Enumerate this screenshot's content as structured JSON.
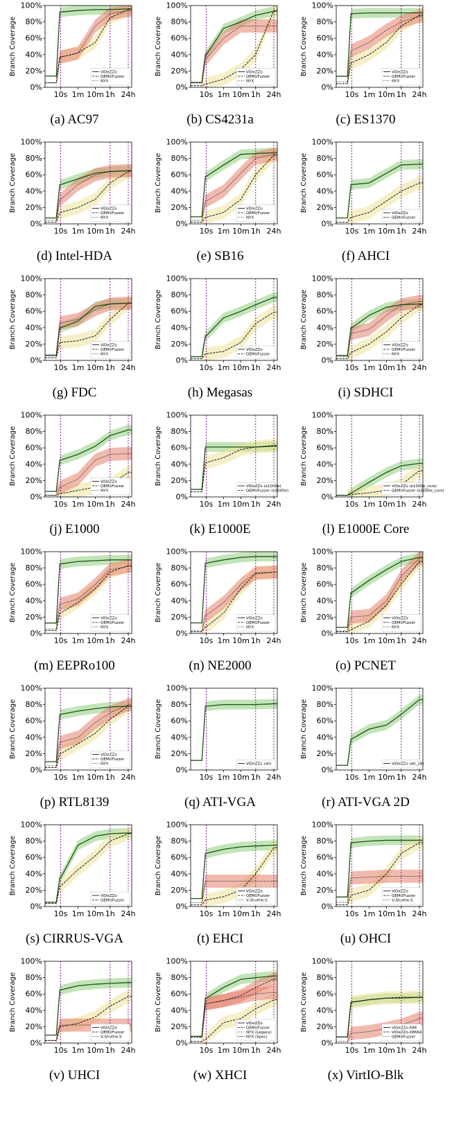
{
  "figure": {
    "ylabel": "Branch Coverage",
    "yticks": [
      "0%",
      "20%",
      "40%",
      "60%",
      "80%",
      "100%"
    ],
    "xticks": [
      "10s",
      "1m",
      "10m",
      "1h",
      "24h"
    ]
  },
  "colors": {
    "videzzo_band": "#8fcf7e",
    "qemufuzzer_band": "#eee39a",
    "nyx_band": "#e6826e",
    "marker_line": "#8b1a9b",
    "line": "#111111"
  },
  "chart_data": [
    {
      "type": "line",
      "caption": "(a) AC97",
      "legend": [
        "ViDeZZo",
        "QEMUFuzzer",
        "NYX"
      ],
      "x": [
        "10s",
        "1m",
        "10m",
        "1h",
        "24h"
      ],
      "ylim": [
        0,
        100
      ],
      "series": [
        {
          "name": "ViDeZZo",
          "values": [
            92,
            94,
            95,
            95,
            96
          ]
        },
        {
          "name": "QEMUFuzzer",
          "values": [
            37,
            42,
            55,
            85,
            95
          ]
        },
        {
          "name": "NYX",
          "values": [
            37,
            42,
            75,
            90,
            94
          ]
        }
      ]
    },
    {
      "type": "line",
      "caption": "(b) CS4231a",
      "legend": [
        "ViDeZZo",
        "QEMUFuzzer",
        "NYX"
      ],
      "x": [
        "10s",
        "1m",
        "10m",
        "1h",
        "24h"
      ],
      "ylim": [
        0,
        100
      ],
      "series": [
        {
          "name": "ViDeZZo",
          "values": [
            40,
            72,
            80,
            88,
            93
          ]
        },
        {
          "name": "QEMUFuzzer",
          "values": [
            4,
            10,
            22,
            40,
            94
          ]
        },
        {
          "name": "NYX",
          "values": [
            35,
            60,
            75,
            75,
            75
          ]
        }
      ]
    },
    {
      "type": "line",
      "caption": "(c) ES1370",
      "legend": [
        "ViDeZZo",
        "QEMUFuzzer",
        "NYX"
      ],
      "x": [
        "10s",
        "1m",
        "10m",
        "1h",
        "24h"
      ],
      "ylim": [
        0,
        100
      ],
      "series": [
        {
          "name": "ViDeZZo",
          "values": [
            90,
            91,
            91,
            91,
            91
          ]
        },
        {
          "name": "QEMUFuzzer",
          "values": [
            30,
            40,
            55,
            75,
            88
          ]
        },
        {
          "name": "NYX",
          "values": [
            45,
            55,
            70,
            80,
            87
          ]
        }
      ]
    },
    {
      "type": "line",
      "caption": "(d) Intel-HDA",
      "legend": [
        "ViDeZZo",
        "QEMUFuzzer",
        "NYX"
      ],
      "x": [
        "10s",
        "1m",
        "10m",
        "1h",
        "24h"
      ],
      "ylim": [
        0,
        100
      ],
      "series": [
        {
          "name": "ViDeZZo",
          "values": [
            48,
            55,
            62,
            64,
            65
          ]
        },
        {
          "name": "QEMUFuzzer",
          "values": [
            14,
            20,
            30,
            50,
            64
          ]
        },
        {
          "name": "NYX",
          "values": [
            30,
            48,
            60,
            64,
            65
          ]
        }
      ]
    },
    {
      "type": "line",
      "caption": "(e) SB16",
      "legend": [
        "ViDeZZo",
        "QEMUFuzzer",
        "NYX"
      ],
      "x": [
        "10s",
        "1m",
        "10m",
        "1h",
        "24h"
      ],
      "ylim": [
        0,
        100
      ],
      "series": [
        {
          "name": "ViDeZZo",
          "values": [
            58,
            72,
            85,
            86,
            87
          ]
        },
        {
          "name": "QEMUFuzzer",
          "values": [
            8,
            14,
            30,
            60,
            84
          ]
        },
        {
          "name": "NYX",
          "values": [
            28,
            40,
            62,
            80,
            85
          ]
        }
      ]
    },
    {
      "type": "line",
      "caption": "(f) AHCI",
      "legend": [
        "ViDeZZo",
        "QEMUFuzzer"
      ],
      "x": [
        "10s",
        "1m",
        "10m",
        "1h",
        "24h"
      ],
      "ylim": [
        0,
        100
      ],
      "series": [
        {
          "name": "ViDeZZo",
          "values": [
            48,
            50,
            62,
            72,
            73
          ]
        },
        {
          "name": "QEMUFuzzer",
          "values": [
            8,
            14,
            28,
            40,
            50
          ]
        }
      ]
    },
    {
      "type": "line",
      "caption": "(g) FDC",
      "legend": [
        "ViDeZZo",
        "QEMUFuzzer",
        "NYX"
      ],
      "x": [
        "10s",
        "1m",
        "10m",
        "1h",
        "24h"
      ],
      "ylim": [
        0,
        100
      ],
      "series": [
        {
          "name": "ViDeZZo",
          "values": [
            40,
            48,
            66,
            69,
            70
          ]
        },
        {
          "name": "QEMUFuzzer",
          "values": [
            22,
            24,
            30,
            50,
            70
          ]
        },
        {
          "name": "NYX",
          "values": [
            46,
            50,
            62,
            69,
            70
          ]
        }
      ]
    },
    {
      "type": "line",
      "caption": "(h) Megasas",
      "legend": [
        "ViDeZZo",
        "QEMUFuzzer"
      ],
      "x": [
        "10s",
        "1m",
        "10m",
        "1h",
        "24h"
      ],
      "ylim": [
        0,
        100
      ],
      "series": [
        {
          "name": "ViDeZZo",
          "values": [
            30,
            52,
            60,
            68,
            77
          ]
        },
        {
          "name": "QEMUFuzzer",
          "values": [
            8,
            11,
            22,
            45,
            59
          ]
        }
      ]
    },
    {
      "type": "line",
      "caption": "(i) SDHCI",
      "legend": [
        "ViDeZZo",
        "QEMUFuzzer",
        "NYX"
      ],
      "x": [
        "10s",
        "1m",
        "10m",
        "1h",
        "24h"
      ],
      "ylim": [
        0,
        100
      ],
      "series": [
        {
          "name": "ViDeZZo",
          "values": [
            40,
            55,
            65,
            68,
            69
          ]
        },
        {
          "name": "QEMUFuzzer",
          "values": [
            10,
            20,
            35,
            52,
            68
          ]
        },
        {
          "name": "NYX",
          "values": [
            33,
            38,
            55,
            68,
            72
          ]
        }
      ]
    },
    {
      "type": "line",
      "caption": "(j) E1000",
      "legend": [
        "ViDeZZo",
        "QEMUFuzzer",
        "NYX"
      ],
      "x": [
        "10s",
        "1m",
        "10m",
        "1h",
        "24h"
      ],
      "ylim": [
        0,
        100
      ],
      "series": [
        {
          "name": "ViDeZZo",
          "values": [
            45,
            52,
            62,
            75,
            82
          ]
        },
        {
          "name": "QEMUFuzzer",
          "values": [
            4,
            8,
            12,
            15,
            30
          ]
        },
        {
          "name": "NYX",
          "values": [
            12,
            22,
            45,
            52,
            53
          ]
        }
      ]
    },
    {
      "type": "line",
      "caption": "(k) E1000E",
      "legend": [
        "ViDeZZo (e1000e)",
        "QEMUFuzzer (e1000e)"
      ],
      "x": [
        "10s",
        "1m",
        "10m",
        "1h",
        "24h"
      ],
      "ylim": [
        0,
        100
      ],
      "series": [
        {
          "name": "ViDeZZo (e1000e)",
          "values": [
            61,
            61,
            61,
            61,
            62
          ]
        },
        {
          "name": "QEMUFuzzer (e1000e)",
          "values": [
            42,
            48,
            58,
            61,
            63
          ]
        }
      ]
    },
    {
      "type": "line",
      "caption": "(l) E1000E Core",
      "legend": [
        "ViDeZZo (e1000e_core)",
        "QEMUFuzzer (e1000e_core)"
      ],
      "x": [
        "10s",
        "1m",
        "10m",
        "1h",
        "24h"
      ],
      "ylim": [
        0,
        100
      ],
      "series": [
        {
          "name": "ViDeZZo (e1000e_core)",
          "values": [
            5,
            18,
            30,
            38,
            41
          ]
        },
        {
          "name": "QEMUFuzzer (e1000e_core)",
          "values": [
            3,
            5,
            8,
            15,
            32
          ]
        }
      ]
    },
    {
      "type": "line",
      "caption": "(m) EEPRo100",
      "legend": [
        "ViDeZZo",
        "QEMUFuzzer",
        "NYX"
      ],
      "x": [
        "10s",
        "1m",
        "10m",
        "1h",
        "24h"
      ],
      "ylim": [
        0,
        100
      ],
      "series": [
        {
          "name": "ViDeZZo",
          "values": [
            85,
            88,
            89,
            90,
            90
          ]
        },
        {
          "name": "QEMUFuzzer",
          "values": [
            25,
            38,
            55,
            75,
            83
          ]
        },
        {
          "name": "NYX",
          "values": [
            36,
            42,
            60,
            78,
            82
          ]
        }
      ]
    },
    {
      "type": "line",
      "caption": "(n) NE2000",
      "legend": [
        "ViDeZZo",
        "QEMUFuzzer",
        "NYX"
      ],
      "x": [
        "10s",
        "1m",
        "10m",
        "1h",
        "24h"
      ],
      "ylim": [
        0,
        100
      ],
      "series": [
        {
          "name": "ViDeZZo",
          "values": [
            86,
            90,
            93,
            94,
            94
          ]
        },
        {
          "name": "QEMUFuzzer",
          "values": [
            8,
            25,
            55,
            73,
            75
          ]
        },
        {
          "name": "NYX",
          "values": [
            22,
            38,
            60,
            74,
            75
          ]
        }
      ]
    },
    {
      "type": "line",
      "caption": "(o) PCNET",
      "legend": [
        "ViDeZZo",
        "QEMUFuzzer",
        "NYX"
      ],
      "x": [
        "10s",
        "1m",
        "10m",
        "1h",
        "24h"
      ],
      "ylim": [
        0,
        100
      ],
      "series": [
        {
          "name": "ViDeZZo",
          "values": [
            50,
            65,
            78,
            88,
            93
          ]
        },
        {
          "name": "QEMUFuzzer",
          "values": [
            5,
            15,
            35,
            60,
            88
          ]
        },
        {
          "name": "NYX",
          "values": [
            20,
            22,
            40,
            70,
            92
          ]
        }
      ]
    },
    {
      "type": "line",
      "caption": "(p) RTL8139",
      "legend": [
        "ViDeZZo",
        "QEMUFuzzer",
        "NYX"
      ],
      "x": [
        "10s",
        "1m",
        "10m",
        "1h",
        "24h"
      ],
      "ylim": [
        0,
        100
      ],
      "series": [
        {
          "name": "ViDeZZo",
          "values": [
            68,
            72,
            75,
            77,
            78
          ]
        },
        {
          "name": "QEMUFuzzer",
          "values": [
            20,
            32,
            45,
            62,
            78
          ]
        },
        {
          "name": "NYX",
          "values": [
            34,
            40,
            58,
            70,
            80
          ]
        }
      ]
    },
    {
      "type": "line",
      "caption": "(q) ATI-VGA",
      "legend": [
        "ViDeZZo (ati)"
      ],
      "x": [
        "10s",
        "1m",
        "10m",
        "1h",
        "24h"
      ],
      "ylim": [
        0,
        100
      ],
      "series": [
        {
          "name": "ViDeZZo (ati)",
          "values": [
            78,
            80,
            80,
            80,
            81
          ]
        }
      ]
    },
    {
      "type": "line",
      "caption": "(r) ATI-VGA 2D",
      "legend": [
        "ViDeZZo (ati_2d)"
      ],
      "x": [
        "10s",
        "1m",
        "10m",
        "1h",
        "24h"
      ],
      "ylim": [
        0,
        100
      ],
      "series": [
        {
          "name": "ViDeZZo (ati_2d)",
          "values": [
            38,
            50,
            55,
            68,
            86
          ]
        }
      ]
    },
    {
      "type": "line",
      "caption": "(s) CIRRUS-VGA",
      "legend": [
        "ViDeZZo",
        "QEMUFuzzer"
      ],
      "x": [
        "10s",
        "1m",
        "10m",
        "1h",
        "24h"
      ],
      "ylim": [
        0,
        100
      ],
      "series": [
        {
          "name": "ViDeZZo",
          "values": [
            35,
            75,
            86,
            89,
            90
          ]
        },
        {
          "name": "QEMUFuzzer",
          "values": [
            25,
            45,
            62,
            80,
            89
          ]
        }
      ]
    },
    {
      "type": "line",
      "caption": "(t) EHCI",
      "legend": [
        "ViDeZZo",
        "QEMUFuzzer",
        "V-Shuttle-S"
      ],
      "x": [
        "10s",
        "1m",
        "10m",
        "1h",
        "24h"
      ],
      "ylim": [
        0,
        100
      ],
      "series": [
        {
          "name": "ViDeZZo",
          "values": [
            65,
            70,
            73,
            74,
            75
          ]
        },
        {
          "name": "QEMUFuzzer",
          "values": [
            8,
            12,
            20,
            40,
            72
          ]
        },
        {
          "name": "V-Shuttle-S",
          "values": [
            31,
            31,
            31,
            31,
            31
          ]
        }
      ]
    },
    {
      "type": "line",
      "caption": "(u) OHCI",
      "legend": [
        "ViDeZZo",
        "QEMUFuzzer",
        "V-Shuttle-S"
      ],
      "x": [
        "10s",
        "1m",
        "10m",
        "1h",
        "24h"
      ],
      "ylim": [
        0,
        100
      ],
      "series": [
        {
          "name": "ViDeZZo",
          "values": [
            78,
            80,
            81,
            81,
            81
          ]
        },
        {
          "name": "QEMUFuzzer",
          "values": [
            14,
            20,
            40,
            65,
            78
          ]
        },
        {
          "name": "V-Shuttle-S",
          "values": [
            35,
            36,
            37,
            37,
            37
          ]
        }
      ]
    },
    {
      "type": "line",
      "caption": "(v) UHCI",
      "legend": [
        "ViDeZZo",
        "QEMUFuzzer",
        "V-Shuttle-S"
      ],
      "x": [
        "10s",
        "1m",
        "10m",
        "1h",
        "24h"
      ],
      "ylim": [
        0,
        100
      ],
      "series": [
        {
          "name": "ViDeZZo",
          "values": [
            65,
            70,
            72,
            73,
            74
          ]
        },
        {
          "name": "QEMUFuzzer",
          "values": [
            20,
            24,
            32,
            45,
            57
          ]
        },
        {
          "name": "V-Shuttle-S",
          "values": [
            22,
            22,
            22,
            22,
            22
          ]
        }
      ]
    },
    {
      "type": "line",
      "caption": "(w) XHCI",
      "legend": [
        "ViDeZZo",
        "QEMUFuzzer",
        "NYX (Legacy)",
        "NYX (Spec)"
      ],
      "x": [
        "10s",
        "1m",
        "10m",
        "1h",
        "24h"
      ],
      "ylim": [
        0,
        100
      ],
      "series": [
        {
          "name": "ViDeZZo",
          "values": [
            55,
            68,
            78,
            80,
            82
          ]
        },
        {
          "name": "QEMUFuzzer",
          "values": [
            5,
            25,
            30,
            42,
            53
          ]
        },
        {
          "name": "NYX (Legacy)",
          "values": [
            48,
            52,
            56,
            60,
            62
          ]
        },
        {
          "name": "NYX (Spec)",
          "values": [
            48,
            52,
            58,
            68,
            78
          ]
        }
      ]
    },
    {
      "type": "line",
      "caption": "(x) VirtIO-Blk",
      "legend": [
        "ViDeZZo-X86",
        "ViDeZZo-X8664",
        "QEMUFuzzer"
      ],
      "x": [
        "10s",
        "1m",
        "10m",
        "1h",
        "24h"
      ],
      "ylim": [
        0,
        100
      ],
      "series": [
        {
          "name": "ViDeZZo-X86",
          "values": [
            50,
            53,
            55,
            55,
            56
          ]
        },
        {
          "name": "ViDeZZo-X8664",
          "values": [
            50,
            53,
            55,
            56,
            56
          ]
        },
        {
          "name": "QEMUFuzzer",
          "values": [
            12,
            14,
            18,
            22,
            30
          ]
        }
      ]
    }
  ]
}
